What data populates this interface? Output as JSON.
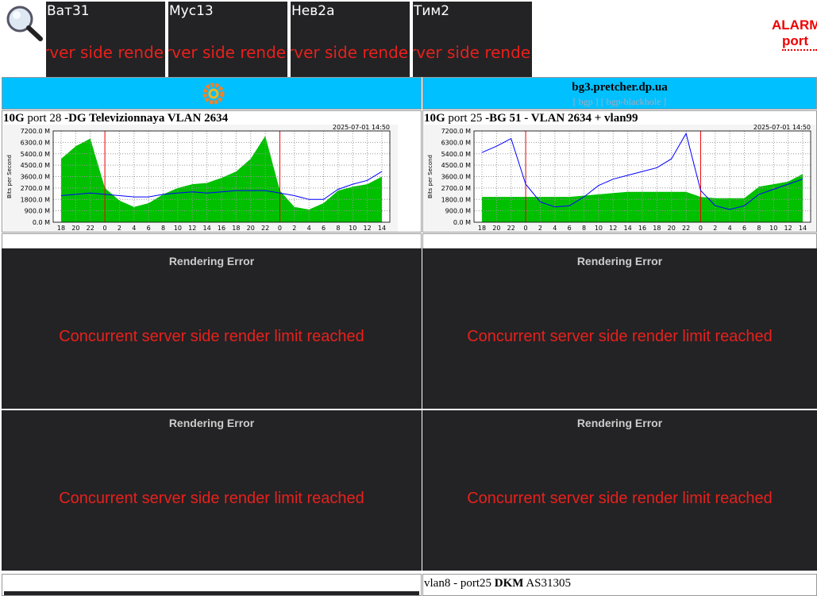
{
  "tiles": [
    {
      "name": "Ват31",
      "message": "Concurrent server side render limit reached"
    },
    {
      "name": "Мус13",
      "message": "Concurrent server side render limit reached"
    },
    {
      "name": "Нев2а",
      "message": "Concurrent server side render limit reached"
    },
    {
      "name": "Тим2",
      "message": "Concurrent server side render limit reached"
    }
  ],
  "alarm": {
    "title": "ALARM",
    "link": "port"
  },
  "header": {
    "host": "bg3.pretcher.dp.ua",
    "links": "[ bgp ] [ bgp-blackhole ]"
  },
  "mrtg": {
    "ylabel": "Bits per Second",
    "date": "2025-07-01 14:50",
    "in_color": "#00c000",
    "out_color": "#0000ff",
    "ylim": [
      0,
      7200
    ],
    "yticks": [
      {
        "value": 0,
        "label": "0.0 M"
      },
      {
        "value": 900,
        "label": "900.0 M"
      },
      {
        "value": 1800,
        "label": "1800.0 M"
      },
      {
        "value": 2700,
        "label": "2700.0 M"
      },
      {
        "value": 3600,
        "label": "3600.0 M"
      },
      {
        "value": 4500,
        "label": "4500.0 M"
      },
      {
        "value": 5400,
        "label": "5400.0 M"
      },
      {
        "value": 6300,
        "label": "6300.0 M"
      },
      {
        "value": 7200,
        "label": "7200.0 M"
      }
    ],
    "categories": [
      18,
      20,
      22,
      0,
      2,
      4,
      6,
      8,
      10,
      12,
      14,
      16,
      18,
      20,
      22,
      0,
      2,
      4,
      6,
      8,
      10,
      12,
      14
    ]
  },
  "graphs": [
    {
      "title_parts": [
        {
          "text": "10G",
          "bold": true
        },
        {
          "text": " port 28 ",
          "bold": false
        },
        {
          "text": "-DG Televizionnaya VLAN 2634",
          "bold": true
        }
      ],
      "in": [
        5000,
        6000,
        6600,
        2700,
        1700,
        1200,
        1500,
        2200,
        2700,
        3000,
        3100,
        3500,
        4000,
        5000,
        6800,
        2500,
        1200,
        1000,
        1500,
        2500,
        2800,
        3000,
        3600
      ],
      "out": [
        2100,
        2200,
        2300,
        2200,
        2100,
        2000,
        2000,
        2200,
        2300,
        2400,
        2300,
        2400,
        2500,
        2500,
        2500,
        2300,
        2100,
        1800,
        1800,
        2600,
        3000,
        3300,
        4000
      ]
    },
    {
      "title_parts": [
        {
          "text": "10G",
          "bold": true
        },
        {
          "text": " port 25 ",
          "bold": false
        },
        {
          "text": "-BG 51 - VLAN 2634 + vlan99",
          "bold": true
        }
      ],
      "in": [
        2000,
        2000,
        2000,
        2000,
        2000,
        2000,
        2000,
        2100,
        2200,
        2300,
        2400,
        2400,
        2400,
        2400,
        2400,
        2000,
        1900,
        1900,
        1900,
        2800,
        3000,
        3200,
        3800
      ],
      "out": [
        5500,
        6000,
        6600,
        3000,
        1600,
        1200,
        1300,
        2000,
        2900,
        3400,
        3700,
        4000,
        4300,
        5000,
        7000,
        2500,
        1300,
        1000,
        1300,
        2200,
        2600,
        3000,
        3400
      ]
    }
  ],
  "panels": [
    {
      "title": "Rendering Error",
      "message": "Concurrent server side render limit reached"
    },
    {
      "title": "Rendering Error",
      "message": "Concurrent server side render limit reached"
    },
    {
      "title": "Rendering Error",
      "message": "Concurrent server side render limit reached"
    },
    {
      "title": "Rendering Error",
      "message": "Concurrent server side render limit reached"
    }
  ],
  "footer": [
    {
      "text": "vlan8 - port25 ",
      "bold": false
    },
    {
      "text": "DKM",
      "bold": true
    },
    {
      "text": " AS31305",
      "bold": false
    }
  ]
}
